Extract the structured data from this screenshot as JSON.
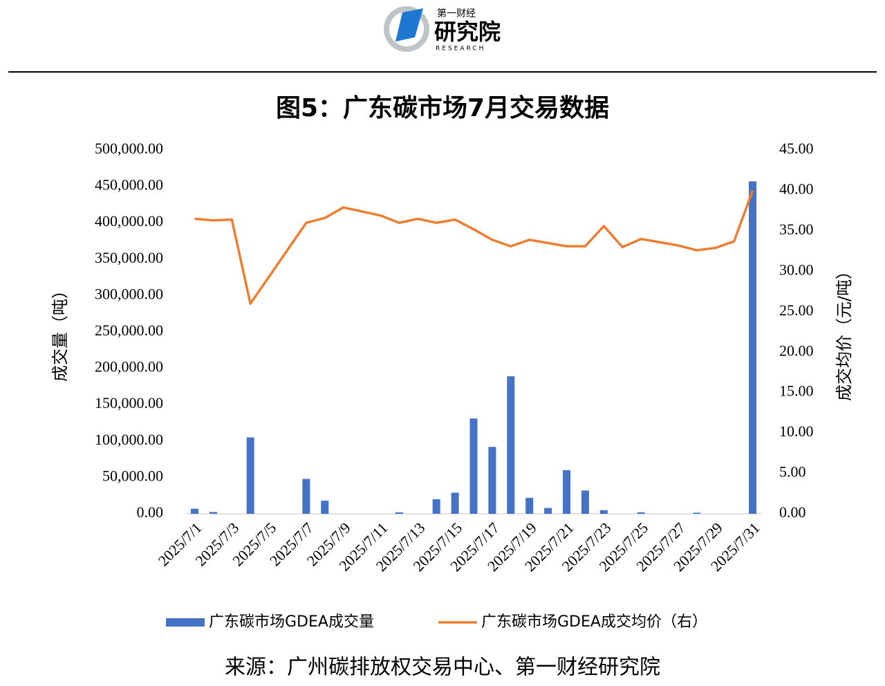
{
  "header": {
    "logo_top": "第一财经",
    "logo_main": "研究院",
    "logo_sub": "RESEARCH"
  },
  "chart_data": {
    "type": "bar-line",
    "title": "图5：广东碳市场7月交易数据",
    "y_label": "成交量（吨）",
    "y2_label": "成交均价（元/吨）",
    "source": "来源：广州碳排放权交易中心、第一财经研究院",
    "categories": [
      "2025/7/1",
      null,
      "2025/7/3",
      null,
      "2025/7/5",
      null,
      "2025/7/7",
      null,
      "2025/7/9",
      null,
      "2025/7/11",
      null,
      "2025/7/13",
      null,
      "2025/7/15",
      null,
      "2025/7/17",
      null,
      "2025/7/19",
      null,
      "2025/7/21",
      null,
      "2025/7/23",
      null,
      "2025/7/25",
      null,
      "2025/7/27",
      null,
      "2025/7/29",
      null,
      "2025/7/31"
    ],
    "series": [
      {
        "name": "广东碳市场GDEA成交量",
        "type": "bar",
        "color": "#4472c4",
        "values": [
          7000,
          2500,
          null,
          105000,
          null,
          null,
          48000,
          18000,
          null,
          null,
          null,
          2000,
          null,
          20000,
          29000,
          131000,
          92000,
          189000,
          22000,
          8000,
          60000,
          32000,
          5000,
          null,
          2000,
          null,
          null,
          1500,
          null,
          null,
          457000
        ]
      },
      {
        "name": "广东碳市场GDEA成交均价（右）",
        "type": "line",
        "axis": "y2",
        "color": "#ed7d31",
        "connect_gaps": true,
        "values": [
          36.5,
          36.3,
          36.4,
          26.0,
          null,
          null,
          36.0,
          36.6,
          37.9,
          37.4,
          36.9,
          36.0,
          36.5,
          36.0,
          36.4,
          35.2,
          33.9,
          33.1,
          33.9,
          33.5,
          33.1,
          33.1,
          35.6,
          33.0,
          34.0,
          33.6,
          33.2,
          32.6,
          32.9,
          33.7,
          40.0
        ]
      }
    ],
    "ylim": [
      0,
      500000
    ],
    "yticks": [
      {
        "value": 0,
        "label": "0.00"
      },
      {
        "value": 50000,
        "label": "50,000.00"
      },
      {
        "value": 100000,
        "label": "100,000.00"
      },
      {
        "value": 150000,
        "label": "150,000.00"
      },
      {
        "value": 200000,
        "label": "200,000.00"
      },
      {
        "value": 250000,
        "label": "250,000.00"
      },
      {
        "value": 300000,
        "label": "300,000.00"
      },
      {
        "value": 350000,
        "label": "350,000.00"
      },
      {
        "value": 400000,
        "label": "400,000.00"
      },
      {
        "value": 450000,
        "label": "450,000.00"
      },
      {
        "value": 500000,
        "label": "500,000.00"
      }
    ],
    "y2lim": [
      0,
      45
    ],
    "y2ticks": [
      {
        "value": 0,
        "label": "0.00"
      },
      {
        "value": 5,
        "label": "5.00"
      },
      {
        "value": 10,
        "label": "10.00"
      },
      {
        "value": 15,
        "label": "15.00"
      },
      {
        "value": 20,
        "label": "20.00"
      },
      {
        "value": 25,
        "label": "25.00"
      },
      {
        "value": 30,
        "label": "30.00"
      },
      {
        "value": 35,
        "label": "35.00"
      },
      {
        "value": 40,
        "label": "40.00"
      },
      {
        "value": 45,
        "label": "45.00"
      }
    ],
    "grid": false
  }
}
